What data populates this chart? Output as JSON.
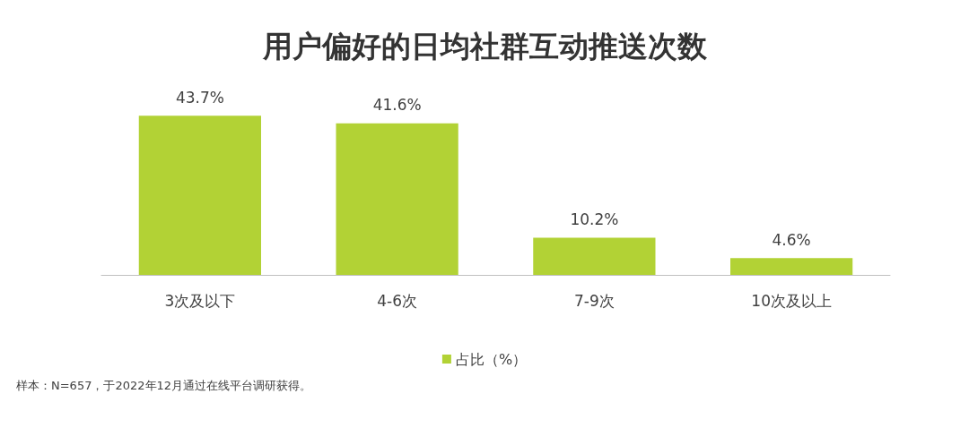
{
  "chart_data": {
    "type": "bar",
    "title": "用户偏好的日均社群互动推送次数",
    "categories": [
      "3次及以下",
      "4-6次",
      "7-9次",
      "10次及以上"
    ],
    "series": [
      {
        "name": "占比（%）",
        "color": "#b2d235",
        "values": [
          43.7,
          41.6,
          10.2,
          4.6
        ],
        "value_labels": [
          "43.7%",
          "41.6%",
          "10.2%",
          "4.6%"
        ]
      }
    ],
    "tick_labels": "x",
    "legend": "bottom",
    "grid": false,
    "annotations": [
      "样本：N=657，于2022年12月通过在线平台调研获得。"
    ]
  }
}
